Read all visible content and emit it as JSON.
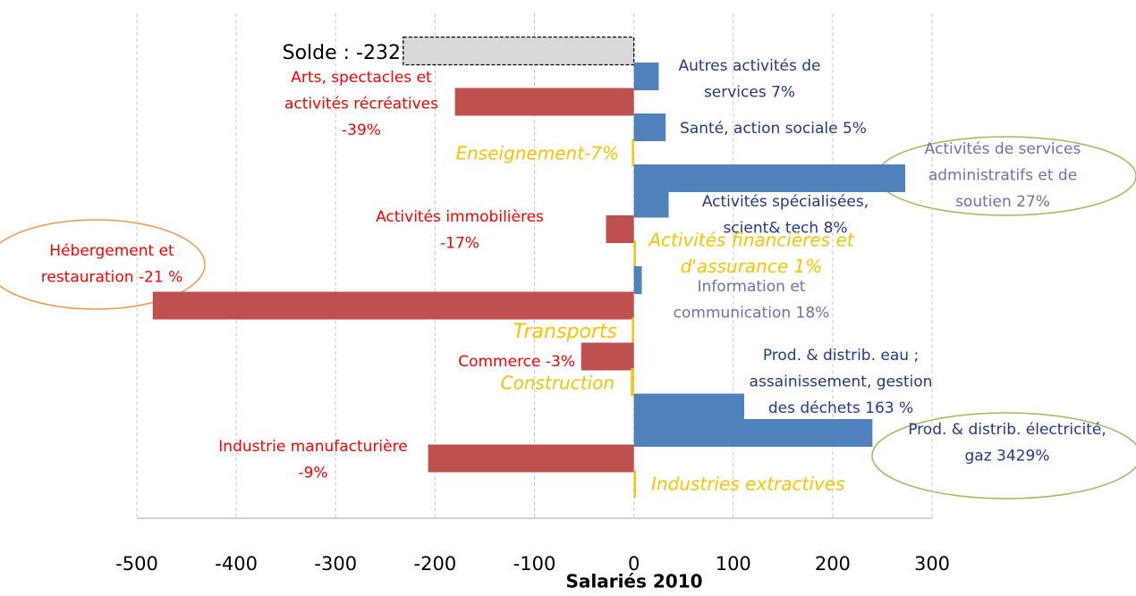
{
  "chart_data": {
    "type": "bar",
    "orientation": "horizontal",
    "x_label": "Salariés 2010",
    "xlim": [
      -500,
      300
    ],
    "xticks": [
      -500,
      -400,
      -300,
      -200,
      -100,
      0,
      100,
      200,
      300
    ],
    "grid": true,
    "values": [
      -232,
      25,
      -180,
      32,
      -2,
      273,
      35,
      -28,
      2,
      8,
      -484,
      -2,
      -53,
      -3,
      111,
      240,
      -207,
      2
    ],
    "colors": [
      "#d9d9d9",
      "#4f81bd",
      "#c0504d",
      "#4f81bd",
      "#ffc000",
      "#4f81bd",
      "#4f81bd",
      "#c0504d",
      "#ffc000",
      "#4f81bd",
      "#c0504d",
      "#ffc000",
      "#c0504d",
      "#ffc000",
      "#4f81bd",
      "#4f81bd",
      "#c0504d",
      "#ffc000"
    ],
    "labels": [
      [
        "Solde : -232"
      ],
      [
        "Autres activités de",
        "services 7%"
      ],
      [
        "Arts, spectacles et",
        "activités récréatives",
        "-39%"
      ],
      [
        "Santé, action sociale 5%"
      ],
      [
        "Enseignement-7%"
      ],
      [
        "Activités de services",
        "administratifs et de",
        "soutien 27%"
      ],
      [
        "Activités spécialisées,",
        "scient& tech 8%"
      ],
      [
        "Activités immobilières",
        "-17%"
      ],
      [
        "Activités financières et",
        "d'assurance 1%"
      ],
      [
        "Information et",
        "communication 18%"
      ],
      [
        "Hébergement et",
        "restauration -21 %"
      ],
      [
        "Transports"
      ],
      [
        "Commerce -3%"
      ],
      [
        "Construction"
      ],
      [
        "Prod. & distrib. eau ;",
        "assainissement, gestion",
        "des déchets 163 %"
      ],
      [
        "Prod. & distrib. électricité,",
        "gaz 3429%"
      ],
      [
        "Industrie manufacturière",
        "-9%"
      ],
      [
        "Industries extractives"
      ]
    ]
  }
}
